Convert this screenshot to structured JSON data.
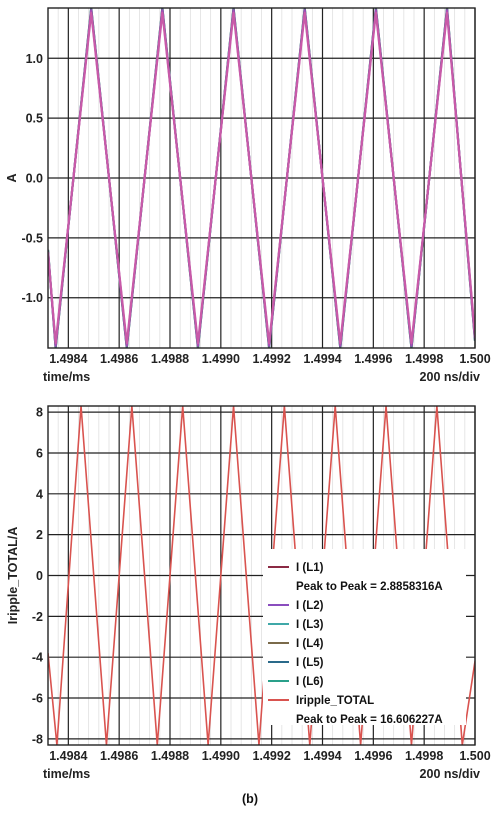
{
  "caption": "(b)",
  "chart_data": [
    {
      "type": "line",
      "ylabel": "A",
      "xlabel": "time/ms",
      "xlabel_right": "200 ns/div",
      "xlim": [
        1.49832,
        1.5
      ],
      "ylim": [
        -1.42,
        1.42
      ],
      "xticks": [
        1.4984,
        1.4986,
        1.4988,
        1.499,
        1.4992,
        1.4994,
        1.4996,
        1.4998,
        1.5
      ],
      "xtick_labels": [
        "1.4984",
        "1.4986",
        "1.4988",
        "1.4990",
        "1.4992",
        "1.4994",
        "1.4996",
        "1.4998",
        "1.500"
      ],
      "yticks": [
        -1.0,
        -0.5,
        0.0,
        0.5,
        1.0
      ],
      "ytick_labels": [
        "-1.0",
        "-0.5",
        "0.0",
        "0.5",
        "1.0"
      ],
      "grid": true,
      "series": [
        {
          "color": "#3a8a8a",
          "x": [
            1.49832,
            1.49835,
            1.49849,
            1.49863,
            1.49877,
            1.49891,
            1.49905,
            1.49919,
            1.49933,
            1.49947,
            1.49961,
            1.49975,
            1.49989,
            1.5
          ],
          "y": [
            -0.6,
            -1.42,
            1.42,
            -1.42,
            1.42,
            -1.42,
            1.42,
            -1.42,
            1.42,
            -1.42,
            1.42,
            -1.42,
            1.42,
            -1.36
          ]
        },
        {
          "color": "#4d6f7e",
          "x": [
            1.49832,
            1.49835,
            1.49849,
            1.49863,
            1.49877,
            1.49891,
            1.49905,
            1.49919,
            1.49933,
            1.49947,
            1.49961,
            1.49975,
            1.49989,
            1.5
          ],
          "y": [
            -0.6,
            -1.42,
            1.42,
            -1.42,
            1.42,
            -1.42,
            1.42,
            -1.42,
            1.42,
            -1.42,
            1.42,
            -1.42,
            1.42,
            -1.36
          ]
        },
        {
          "color": "#a24db8",
          "x": [
            1.49832,
            1.49835,
            1.49849,
            1.49863,
            1.49877,
            1.49891,
            1.49905,
            1.49919,
            1.49933,
            1.49947,
            1.49961,
            1.49975,
            1.49989,
            1.5
          ],
          "y": [
            -0.62,
            -1.4,
            1.4,
            -1.4,
            1.4,
            -1.4,
            1.4,
            -1.4,
            1.4,
            -1.4,
            1.4,
            -1.4,
            1.4,
            -1.34
          ]
        },
        {
          "color": "#c85aa8",
          "x": [
            1.49832,
            1.49835,
            1.49849,
            1.49863,
            1.49877,
            1.49891,
            1.49905,
            1.49919,
            1.49933,
            1.49947,
            1.49961,
            1.49975,
            1.49989,
            1.5
          ],
          "y": [
            -0.62,
            -1.38,
            1.38,
            -1.38,
            1.38,
            -1.38,
            1.38,
            -1.38,
            1.38,
            -1.38,
            1.38,
            -1.38,
            1.38,
            -1.32
          ]
        }
      ]
    },
    {
      "type": "line",
      "ylabel": "Iripple_TOTAL/A",
      "xlabel": "time/ms",
      "xlabel_right": "200 ns/div",
      "xlim": [
        1.49832,
        1.5
      ],
      "ylim": [
        -8.3,
        8.3
      ],
      "xticks": [
        1.4984,
        1.4986,
        1.4988,
        1.499,
        1.4992,
        1.4994,
        1.4996,
        1.4998,
        1.5
      ],
      "xtick_labels": [
        "1.4984",
        "1.4986",
        "1.4988",
        "1.4990",
        "1.4992",
        "1.4994",
        "1.4996",
        "1.4998",
        "1.500"
      ],
      "yticks": [
        -8,
        -6,
        -4,
        -2,
        0,
        2,
        4,
        6,
        8
      ],
      "ytick_labels": [
        "-8",
        "-6",
        "-4",
        "-2",
        "0",
        "2",
        "4",
        "6",
        "8"
      ],
      "grid": true,
      "legend_position": "bottom-right",
      "legend": [
        {
          "label": "I (L1)",
          "color": "#8b2a44"
        },
        {
          "label": "Peak to Peak = 2.8858316A",
          "color": ""
        },
        {
          "label": "I (L2)",
          "color": "#8a4dbe"
        },
        {
          "label": "I (L3)",
          "color": "#3fa8a8"
        },
        {
          "label": "I (L4)",
          "color": "#7a6a4a"
        },
        {
          "label": "I (L5)",
          "color": "#2a6a8a"
        },
        {
          "label": "I (L6)",
          "color": "#2aa08a"
        },
        {
          "label": "Iripple_TOTAL",
          "color": "#d9534f"
        },
        {
          "label": "Peak to Peak = 16.606227A",
          "color": ""
        }
      ],
      "series": [
        {
          "color": "#d9534f",
          "x": [
            1.49832,
            1.498355,
            1.49845,
            1.49855,
            1.49865,
            1.49875,
            1.49885,
            1.49895,
            1.49905,
            1.49915,
            1.49925,
            1.49935,
            1.49945,
            1.49955,
            1.49965,
            1.49975,
            1.49985,
            1.49995,
            1.5
          ],
          "y": [
            -3.8,
            -8.3,
            8.3,
            -8.3,
            8.3,
            -8.3,
            8.3,
            -8.3,
            8.3,
            -8.3,
            8.3,
            -8.3,
            8.3,
            -8.3,
            8.3,
            -8.3,
            8.3,
            -8.3,
            -4.2
          ]
        }
      ]
    }
  ]
}
